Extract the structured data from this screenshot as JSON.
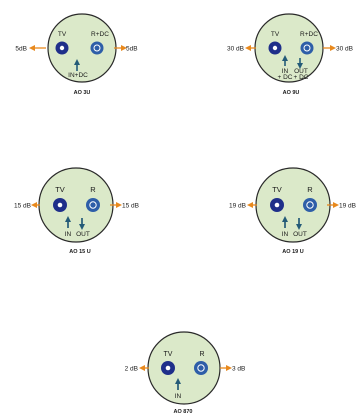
{
  "colors": {
    "plate_fill": "#dbe9c9",
    "plate_stroke": "#2a2a2a",
    "port_left": "#1f2f8a",
    "port_right": "#2e5ea8",
    "arrow_orange": "#e8891d",
    "arrow_blue": "#245b78"
  },
  "outlets": [
    {
      "id": "ao3u",
      "name": "AO 3U",
      "left_port_label": "TV",
      "right_port_label": "R+DC",
      "left_db": "5dB",
      "right_db": "5dB",
      "input_label": "IN+DC",
      "output_label": "",
      "input_extra": "",
      "output_extra": ""
    },
    {
      "id": "ao9u",
      "name": "AO 9U",
      "left_port_label": "TV",
      "right_port_label": "R+DC",
      "left_db": "30 dB",
      "right_db": "30 dB",
      "input_label": "IN",
      "output_label": "OUT",
      "input_extra": "+ DC",
      "output_extra": "+ DC"
    },
    {
      "id": "ao15u",
      "name": "AO 15 U",
      "left_port_label": "TV",
      "right_port_label": "R",
      "left_db": "15 dB",
      "right_db": "15 dB",
      "input_label": "IN",
      "output_label": "OUT",
      "input_extra": "",
      "output_extra": ""
    },
    {
      "id": "ao19u",
      "name": "AO 19 U",
      "left_port_label": "TV",
      "right_port_label": "R",
      "left_db": "19 dB",
      "right_db": "19 dB",
      "input_label": "IN",
      "output_label": "OUT",
      "input_extra": "",
      "output_extra": ""
    },
    {
      "id": "ao870",
      "name": "AO 870",
      "left_port_label": "TV",
      "right_port_label": "R",
      "left_db": "2 dB",
      "right_db": "3 dB",
      "input_label": "IN",
      "output_label": "",
      "input_extra": "",
      "output_extra": ""
    }
  ]
}
